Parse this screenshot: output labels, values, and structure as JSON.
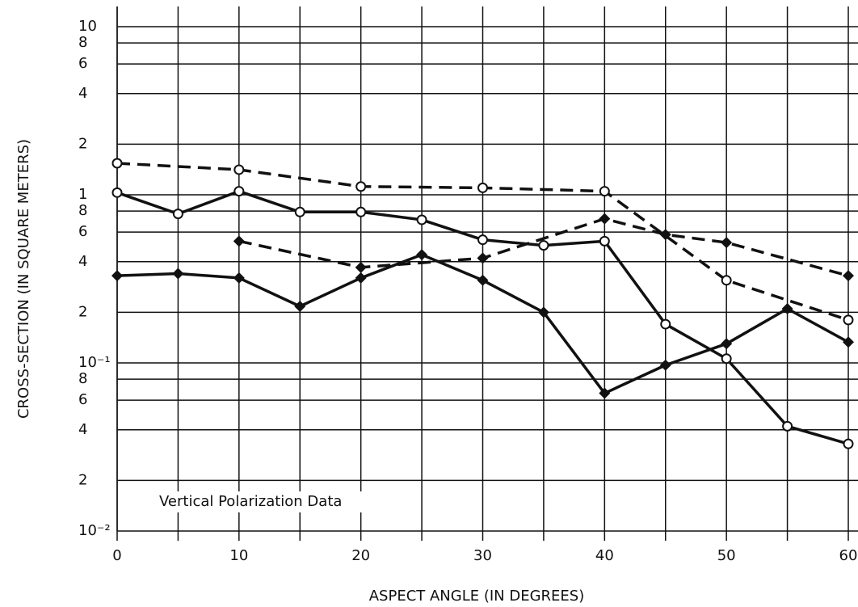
{
  "chart_data": {
    "type": "line",
    "xlabel": "ASPECT ANGLE (IN DEGREES)",
    "ylabel": "CROSS-SECTION (IN SQUARE METERS)",
    "annotation": "Vertical Polarization Data",
    "xlim": [
      0,
      60
    ],
    "xticks": [
      0,
      10,
      20,
      30,
      40,
      50,
      60
    ],
    "minor_xticks": [
      5,
      15,
      25,
      35,
      45,
      55
    ],
    "ylim": [
      0.01,
      10
    ],
    "log_y": true,
    "grid": true,
    "yticks": [
      10,
      8,
      6,
      4,
      2,
      1,
      {
        "value": 0.8,
        "label": "8"
      },
      {
        "value": 0.6,
        "label": "6"
      },
      {
        "value": 0.4,
        "label": "4"
      },
      {
        "value": 0.2,
        "label": "2"
      },
      {
        "value": 0.1,
        "label": "10⁻¹"
      },
      {
        "value": 0.08,
        "label": "8"
      },
      {
        "value": 0.06,
        "label": "6"
      },
      {
        "value": 0.04,
        "label": "4"
      },
      {
        "value": 0.02,
        "label": "2"
      },
      {
        "value": 0.01,
        "label": "10⁻²"
      }
    ],
    "series": [
      {
        "color": "#111111",
        "marker": "circle",
        "dashed": true,
        "x": [
          0,
          10,
          20,
          30,
          40,
          50,
          60
        ],
        "values": [
          1.54,
          1.41,
          1.12,
          1.1,
          1.05,
          0.31,
          0.18
        ]
      },
      {
        "color": "#111111",
        "marker": "diamond",
        "dashed": true,
        "x": [
          10,
          20,
          30,
          40,
          45,
          50,
          60
        ],
        "values": [
          0.53,
          0.37,
          0.42,
          0.72,
          0.58,
          0.52,
          0.33
        ]
      },
      {
        "color": "#111111",
        "marker": "circle",
        "dashed": false,
        "x": [
          0,
          5,
          10,
          15,
          20,
          25,
          30,
          35,
          40,
          45,
          50,
          55,
          60
        ],
        "values": [
          1.03,
          0.77,
          1.05,
          0.79,
          0.79,
          0.71,
          0.54,
          0.5,
          0.53,
          0.17,
          0.106,
          0.042,
          0.033
        ]
      },
      {
        "color": "#111111",
        "marker": "diamond",
        "dashed": false,
        "x": [
          0,
          5,
          10,
          15,
          20,
          25,
          30,
          35,
          40,
          45,
          50,
          55,
          60
        ],
        "values": [
          0.33,
          0.34,
          0.32,
          0.217,
          0.32,
          0.44,
          0.31,
          0.2,
          0.066,
          0.097,
          0.13,
          0.21,
          0.133
        ]
      }
    ]
  }
}
